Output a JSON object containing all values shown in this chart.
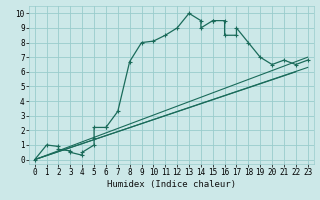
{
  "title": "",
  "xlabel": "Humidex (Indice chaleur)",
  "ylabel": "",
  "bg_color": "#cce8e8",
  "grid_color": "#99cccc",
  "line_color": "#1a6b5a",
  "xlim": [
    -0.5,
    23.5
  ],
  "ylim": [
    -0.3,
    10.5
  ],
  "xticks": [
    0,
    1,
    2,
    3,
    4,
    5,
    6,
    7,
    8,
    9,
    10,
    11,
    12,
    13,
    14,
    15,
    16,
    17,
    18,
    19,
    20,
    21,
    22,
    23
  ],
  "yticks": [
    0,
    1,
    2,
    3,
    4,
    5,
    6,
    7,
    8,
    9,
    10
  ],
  "curve_x": [
    0,
    1,
    2,
    2,
    3,
    3,
    4,
    4,
    5,
    5,
    5,
    6,
    6,
    7,
    8,
    9,
    10,
    11,
    12,
    13,
    14,
    14,
    15,
    15,
    16,
    16,
    17,
    17,
    18,
    19,
    20,
    21,
    22,
    23
  ],
  "curve_y": [
    0,
    1.0,
    0.9,
    0.7,
    0.6,
    0.5,
    0.3,
    0.5,
    1.0,
    1.5,
    2.2,
    2.2,
    2.2,
    3.3,
    6.7,
    8.0,
    8.1,
    8.5,
    9.0,
    10.0,
    9.5,
    9.0,
    9.5,
    9.5,
    9.5,
    8.5,
    8.5,
    9.0,
    8.0,
    7.0,
    6.5,
    6.8,
    6.5,
    6.8
  ],
  "line1_x": [
    0,
    23
  ],
  "line1_y": [
    0,
    7.0
  ],
  "line2_x": [
    0,
    23
  ],
  "line2_y": [
    0,
    6.3
  ],
  "line3_x": [
    0,
    22
  ],
  "line3_y": [
    0,
    6.0
  ],
  "xlabel_fontsize": 6.5,
  "tick_fontsize": 5.5
}
